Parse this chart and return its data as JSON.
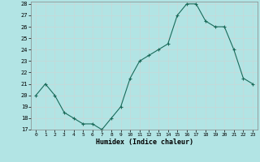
{
  "x": [
    0,
    1,
    2,
    3,
    4,
    5,
    6,
    7,
    8,
    9,
    10,
    11,
    12,
    13,
    14,
    15,
    16,
    17,
    18,
    19,
    20,
    21,
    22,
    23
  ],
  "y": [
    20,
    21,
    20,
    18.5,
    18,
    17.5,
    17.5,
    17,
    18,
    19,
    21.5,
    23,
    23.5,
    24,
    24.5,
    27,
    28,
    28,
    26.5,
    26,
    26,
    24,
    21.5,
    21
  ],
  "line_color": "#1a6b5a",
  "bg_color": "#b2e4e4",
  "grid_color": "#c8d8d8",
  "ylabel_values": [
    17,
    18,
    19,
    20,
    21,
    22,
    23,
    24,
    25,
    26,
    27,
    28
  ],
  "xlabel": "Humidex (Indice chaleur)",
  "ylim": [
    17,
    28
  ],
  "xlim": [
    -0.5,
    23.5
  ]
}
